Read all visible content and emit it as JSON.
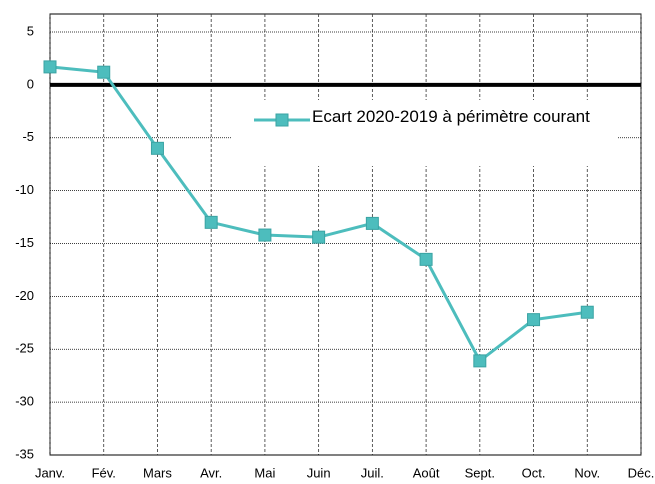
{
  "chart_data": {
    "type": "line",
    "categories": [
      "Janv.",
      "Fév.",
      "Mars",
      "Avr.",
      "Mai",
      "Juin",
      "Juil.",
      "Août",
      "Sept.",
      "Oct.",
      "Nov.",
      "Déc."
    ],
    "series": [
      {
        "name": "Ecart 2020-2019 à périmètre courant",
        "color": "#4dbdbd",
        "values": [
          1.7,
          1.2,
          -6,
          -13,
          -14.2,
          -14.4,
          -13.1,
          -16.5,
          -26.1,
          -22.2,
          -21.5,
          null
        ]
      }
    ],
    "ylim": [
      -35,
      5
    ],
    "yticks": [
      -35,
      -30,
      -25,
      -20,
      -15,
      -10,
      -5,
      0,
      5
    ],
    "grid": true,
    "legend": "top-right"
  }
}
